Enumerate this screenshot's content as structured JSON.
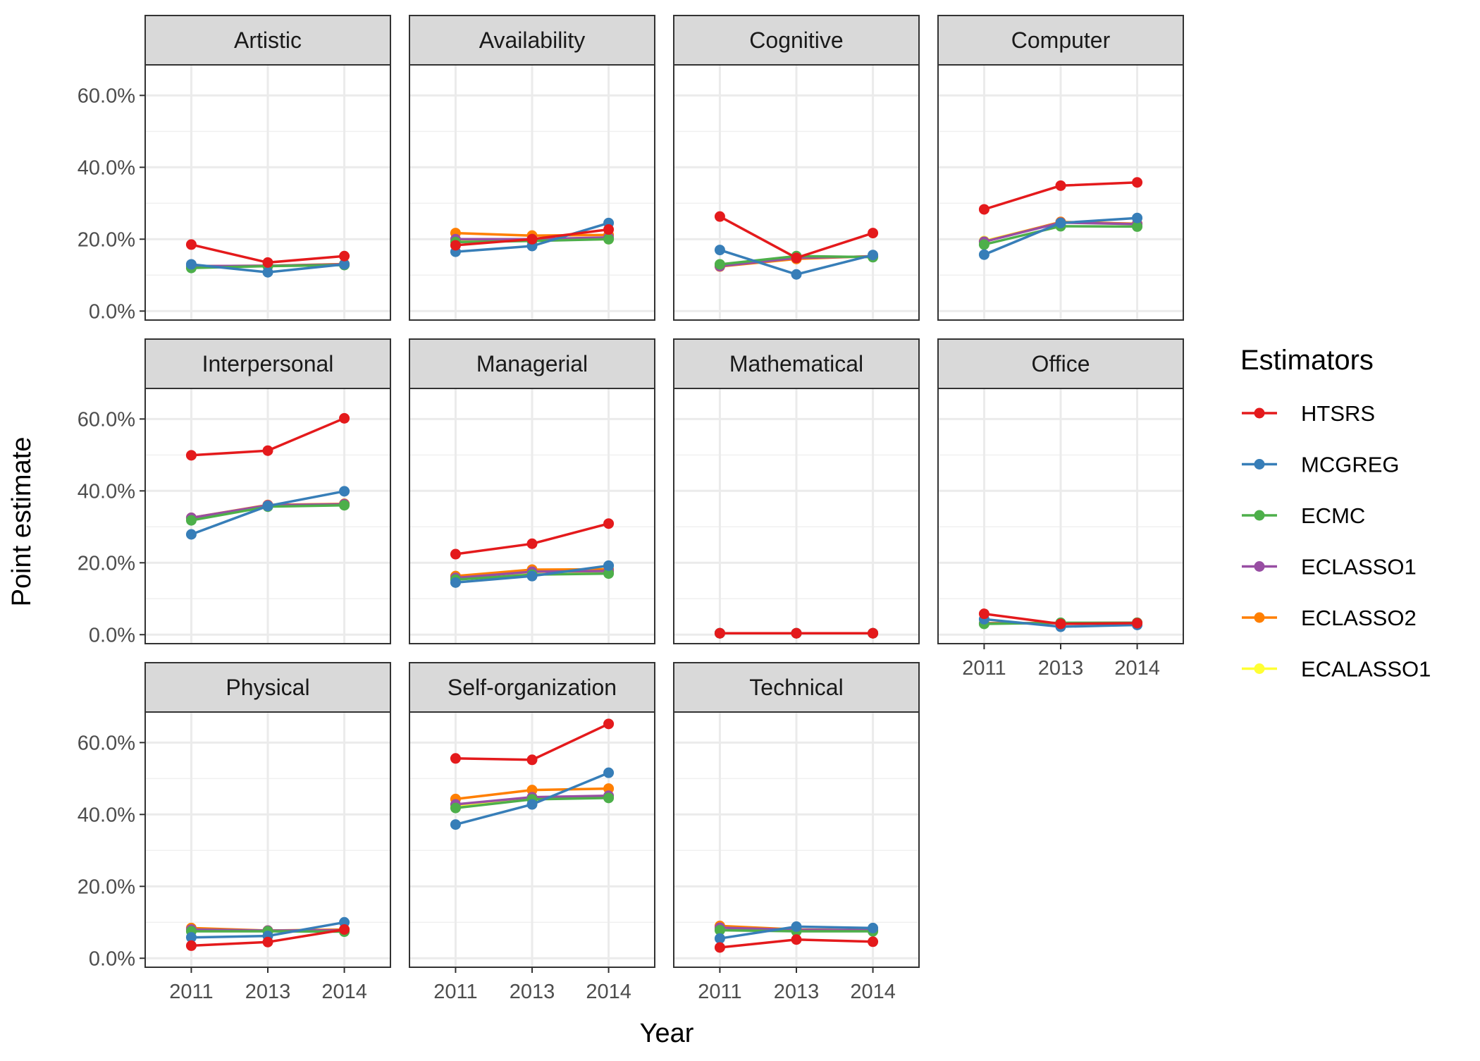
{
  "chart_data": {
    "type": "line",
    "xlabel": "Year",
    "ylabel": "Point estimate",
    "x": [
      "2011",
      "2013",
      "2014"
    ],
    "ylim": [
      -0.025,
      0.685
    ],
    "yticks": [
      0.0,
      0.2,
      0.4,
      0.6
    ],
    "ytick_labels": [
      "0.0%",
      "20.0%",
      "40.0%",
      "60.0%"
    ],
    "grid": true,
    "legend": {
      "title": "Estimators",
      "placement": "right",
      "entries": [
        "HTSRS",
        "MCGREG",
        "ECMC",
        "ECLASSO1",
        "ECLASSO2",
        "ECALASSO1"
      ]
    },
    "colors": {
      "HTSRS": "#E41A1C",
      "MCGREG": "#377EB8",
      "ECMC": "#4DAF4A",
      "ECLASSO1": "#984EA3",
      "ECLASSO2": "#FF7F00",
      "ECALASSO1": "#FFFF33"
    },
    "facets": [
      {
        "title": "Artistic",
        "series": {
          "HTSRS": [
            0.185,
            0.135,
            0.153
          ],
          "MCGREG": [
            0.13,
            0.108,
            0.13
          ],
          "ECMC": [
            0.12,
            0.125,
            0.128
          ],
          "ECLASSO1": [
            0.125,
            0.126,
            0.13
          ],
          "ECLASSO2": [
            0.125,
            0.126,
            0.131
          ],
          "ECALASSO1": [
            0.124,
            0.126,
            0.131
          ]
        }
      },
      {
        "title": "Availability",
        "series": {
          "HTSRS": [
            0.183,
            0.2,
            0.227
          ],
          "MCGREG": [
            0.165,
            0.181,
            0.245
          ],
          "ECMC": [
            0.192,
            0.195,
            0.2
          ],
          "ECLASSO1": [
            0.2,
            0.2,
            0.205
          ],
          "ECLASSO2": [
            0.217,
            0.21,
            0.212
          ],
          "ECALASSO1": [
            0.195,
            0.197,
            0.2
          ]
        }
      },
      {
        "title": "Cognitive",
        "series": {
          "HTSRS": [
            0.263,
            0.148,
            0.217
          ],
          "MCGREG": [
            0.17,
            0.102,
            0.156
          ],
          "ECMC": [
            0.13,
            0.153,
            0.15
          ],
          "ECLASSO1": [
            0.125,
            0.148,
            0.152
          ],
          "ECLASSO2": [
            0.124,
            0.145,
            0.153
          ],
          "ECALASSO1": [
            0.126,
            0.148,
            0.152
          ]
        }
      },
      {
        "title": "Computer",
        "series": {
          "HTSRS": [
            0.283,
            0.349,
            0.358
          ],
          "MCGREG": [
            0.157,
            0.245,
            0.259
          ],
          "ECMC": [
            0.185,
            0.236,
            0.235
          ],
          "ECLASSO1": [
            0.193,
            0.246,
            0.242
          ],
          "ECLASSO2": [
            0.193,
            0.248,
            0.243
          ],
          "ECALASSO1": [
            0.195,
            0.247,
            0.243
          ]
        }
      },
      {
        "title": "Interpersonal",
        "series": {
          "HTSRS": [
            0.499,
            0.512,
            0.602
          ],
          "MCGREG": [
            0.279,
            0.358,
            0.399
          ],
          "ECMC": [
            0.318,
            0.356,
            0.36
          ],
          "ECLASSO1": [
            0.325,
            0.36,
            0.363
          ],
          "ECLASSO2": [
            0.325,
            0.361,
            0.364
          ],
          "ECALASSO1": [
            0.324,
            0.36,
            0.364
          ]
        }
      },
      {
        "title": "Managerial",
        "series": {
          "HTSRS": [
            0.224,
            0.253,
            0.309
          ],
          "MCGREG": [
            0.145,
            0.163,
            0.192
          ],
          "ECMC": [
            0.153,
            0.167,
            0.17
          ],
          "ECLASSO1": [
            0.158,
            0.175,
            0.177
          ],
          "ECLASSO2": [
            0.163,
            0.181,
            0.182
          ],
          "ECALASSO1": [
            0.157,
            0.174,
            0.176
          ]
        }
      },
      {
        "title": "Mathematical",
        "series": {
          "HTSRS": [
            0.004,
            0.004,
            0.004
          ],
          "MCGREG": [
            0.004,
            0.004,
            0.004
          ],
          "ECMC": [
            0.004,
            0.004,
            0.004
          ],
          "ECLASSO1": [
            0.004,
            0.004,
            0.004
          ],
          "ECLASSO2": [
            0.004,
            0.004,
            0.004
          ],
          "ECALASSO1": [
            0.004,
            0.004,
            0.004
          ]
        }
      },
      {
        "title": "Office",
        "series": {
          "HTSRS": [
            0.058,
            0.03,
            0.032
          ],
          "MCGREG": [
            0.043,
            0.022,
            0.027
          ],
          "ECMC": [
            0.03,
            0.033,
            0.033
          ],
          "ECLASSO1": [
            0.031,
            0.032,
            0.033
          ],
          "ECLASSO2": [
            0.032,
            0.032,
            0.033
          ],
          "ECALASSO1": [
            0.032,
            0.032,
            0.033
          ]
        }
      },
      {
        "title": "Physical",
        "series": {
          "HTSRS": [
            0.035,
            0.045,
            0.08
          ],
          "MCGREG": [
            0.058,
            0.062,
            0.1
          ],
          "ECMC": [
            0.075,
            0.075,
            0.074
          ],
          "ECLASSO1": [
            0.08,
            0.077,
            0.078
          ],
          "ECLASSO2": [
            0.084,
            0.077,
            0.08
          ],
          "ECALASSO1": [
            0.081,
            0.077,
            0.079
          ]
        }
      },
      {
        "title": "Self-organization",
        "series": {
          "HTSRS": [
            0.556,
            0.552,
            0.652
          ],
          "MCGREG": [
            0.372,
            0.428,
            0.516
          ],
          "ECMC": [
            0.418,
            0.442,
            0.446
          ],
          "ECLASSO1": [
            0.428,
            0.448,
            0.452
          ],
          "ECLASSO2": [
            0.443,
            0.468,
            0.472
          ],
          "ECALASSO1": [
            0.424,
            0.443,
            0.448
          ]
        }
      },
      {
        "title": "Technical",
        "series": {
          "HTSRS": [
            0.03,
            0.052,
            0.046
          ],
          "MCGREG": [
            0.055,
            0.088,
            0.084
          ],
          "ECMC": [
            0.078,
            0.075,
            0.075
          ],
          "ECLASSO1": [
            0.085,
            0.079,
            0.078
          ],
          "ECLASSO2": [
            0.09,
            0.08,
            0.078
          ],
          "ECALASSO1": [
            0.083,
            0.077,
            0.077
          ]
        }
      }
    ]
  }
}
